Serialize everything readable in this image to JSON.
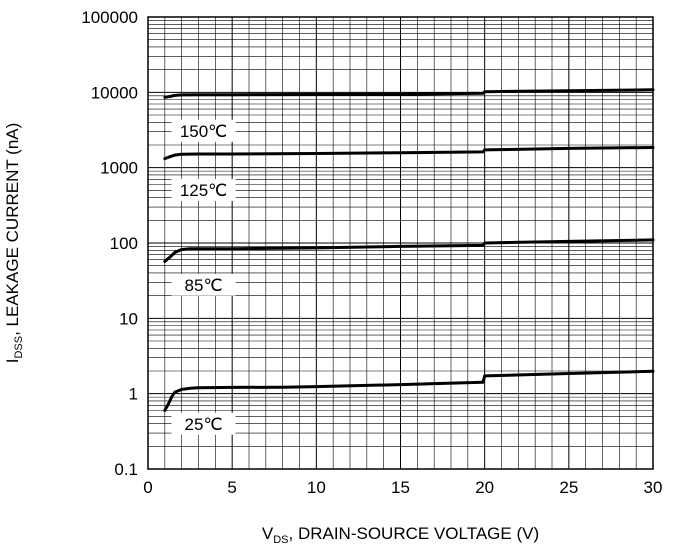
{
  "chart_data": {
    "type": "line",
    "title": "",
    "xlabel": {
      "main": "V",
      "sub": "DS",
      "rest": ", DRAIN-SOURCE VOLTAGE (V)"
    },
    "ylabel": {
      "main": "I",
      "sub": "DSS",
      "rest": ", LEAKAGE CURRENT (nA)"
    },
    "xlim": [
      0,
      30
    ],
    "ylim": [
      0.1,
      100000
    ],
    "yscale": "log",
    "grid": true,
    "xticks": [
      0,
      5,
      10,
      15,
      20,
      25,
      30
    ],
    "xtick_labels": [
      "0",
      "5",
      "10",
      "15",
      "20",
      "25",
      "30"
    ],
    "yticks": [
      0.1,
      1,
      10,
      100,
      1000,
      10000,
      100000
    ],
    "ytick_labels": [
      "0.1",
      "1",
      "10",
      "100",
      "1000",
      "10000",
      "100000"
    ],
    "series": [
      {
        "name": "150℃",
        "x": [
          1.0,
          1.3,
          1.6,
          2.0,
          3.0,
          5.0,
          10.0,
          15.0,
          19.9,
          20.0,
          25.0,
          30.0
        ],
        "values": [
          8600,
          8800,
          9100,
          9250,
          9300,
          9300,
          9350,
          9450,
          9700,
          10200,
          10500,
          10800
        ]
      },
      {
        "name": "125℃",
        "x": [
          1.0,
          1.3,
          1.6,
          2.0,
          3.0,
          5.0,
          10.0,
          15.0,
          19.9,
          20.0,
          25.0,
          30.0
        ],
        "values": [
          1320,
          1400,
          1470,
          1510,
          1520,
          1520,
          1540,
          1580,
          1620,
          1720,
          1800,
          1850
        ]
      },
      {
        "name": "85℃",
        "x": [
          1.0,
          1.3,
          1.6,
          2.0,
          2.5,
          3.0,
          5.0,
          10.0,
          15.0,
          19.9,
          20.0,
          25.0,
          30.0
        ],
        "values": [
          57,
          65,
          75,
          82,
          84,
          84,
          84,
          86,
          90,
          93,
          100,
          105,
          110
        ]
      },
      {
        "name": "25℃",
        "x": [
          1.0,
          1.2,
          1.4,
          1.6,
          2.0,
          2.5,
          3.0,
          5.0,
          8.0,
          10.0,
          15.0,
          19.9,
          20.0,
          25.0,
          30.0
        ],
        "values": [
          0.6,
          0.72,
          0.9,
          1.05,
          1.14,
          1.18,
          1.2,
          1.21,
          1.22,
          1.24,
          1.32,
          1.42,
          1.72,
          1.85,
          1.98
        ]
      }
    ]
  }
}
